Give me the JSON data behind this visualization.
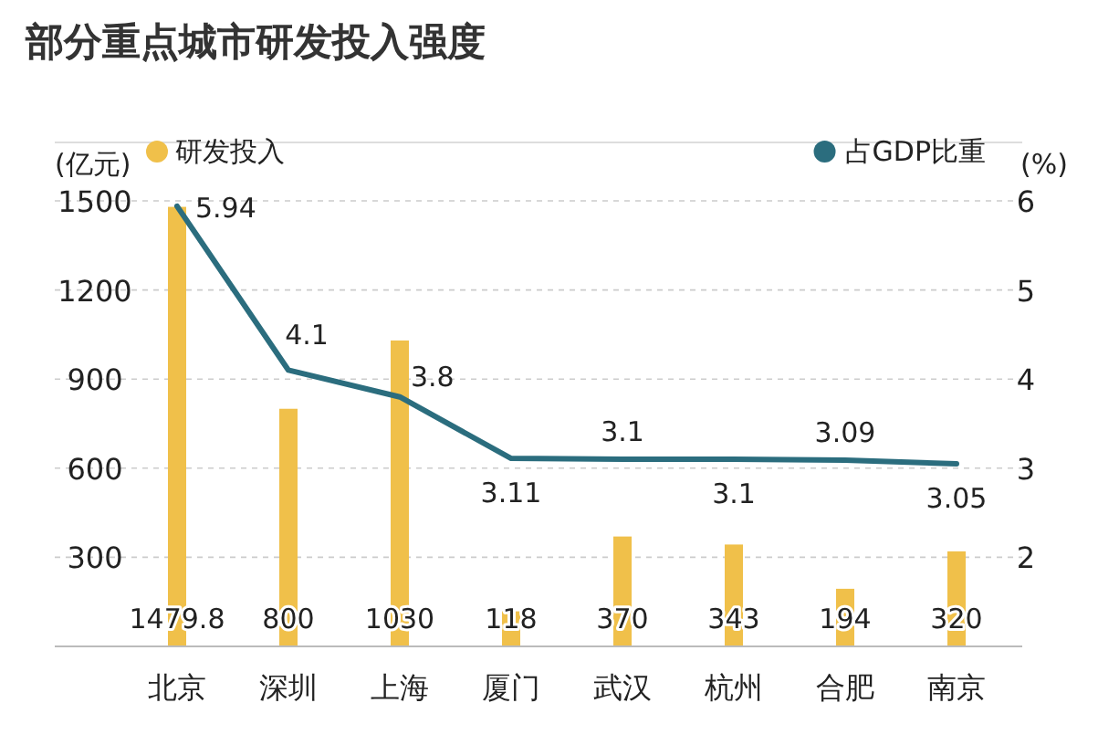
{
  "chart_data": {
    "type": "bar",
    "title": "部分重点城市研发投入强度",
    "ylabel": "(亿元)",
    "y2label": "(%)",
    "categories": [
      "北京",
      "深圳",
      "上海",
      "厦门",
      "武汉",
      "杭州",
      "合肥",
      "南京"
    ],
    "series": [
      {
        "name": "研发投入",
        "type": "bar",
        "color": "#f0c04a",
        "values": [
          1479.8,
          800,
          1030,
          118,
          370,
          343,
          194,
          320
        ]
      },
      {
        "name": "占GDP比重",
        "type": "line",
        "axis": "y2",
        "color": "#2b6d7e",
        "values": [
          5.94,
          4.1,
          3.8,
          3.11,
          3.1,
          3.1,
          3.09,
          3.05
        ]
      }
    ],
    "ylim": [
      0,
      1500
    ],
    "yticks": [
      300,
      600,
      900,
      1200,
      1500
    ],
    "y2lim": [
      1,
      6
    ],
    "y2ticks": [
      2,
      3,
      4,
      5,
      6
    ],
    "grid": "y",
    "legend": "top",
    "data_labels": true
  }
}
